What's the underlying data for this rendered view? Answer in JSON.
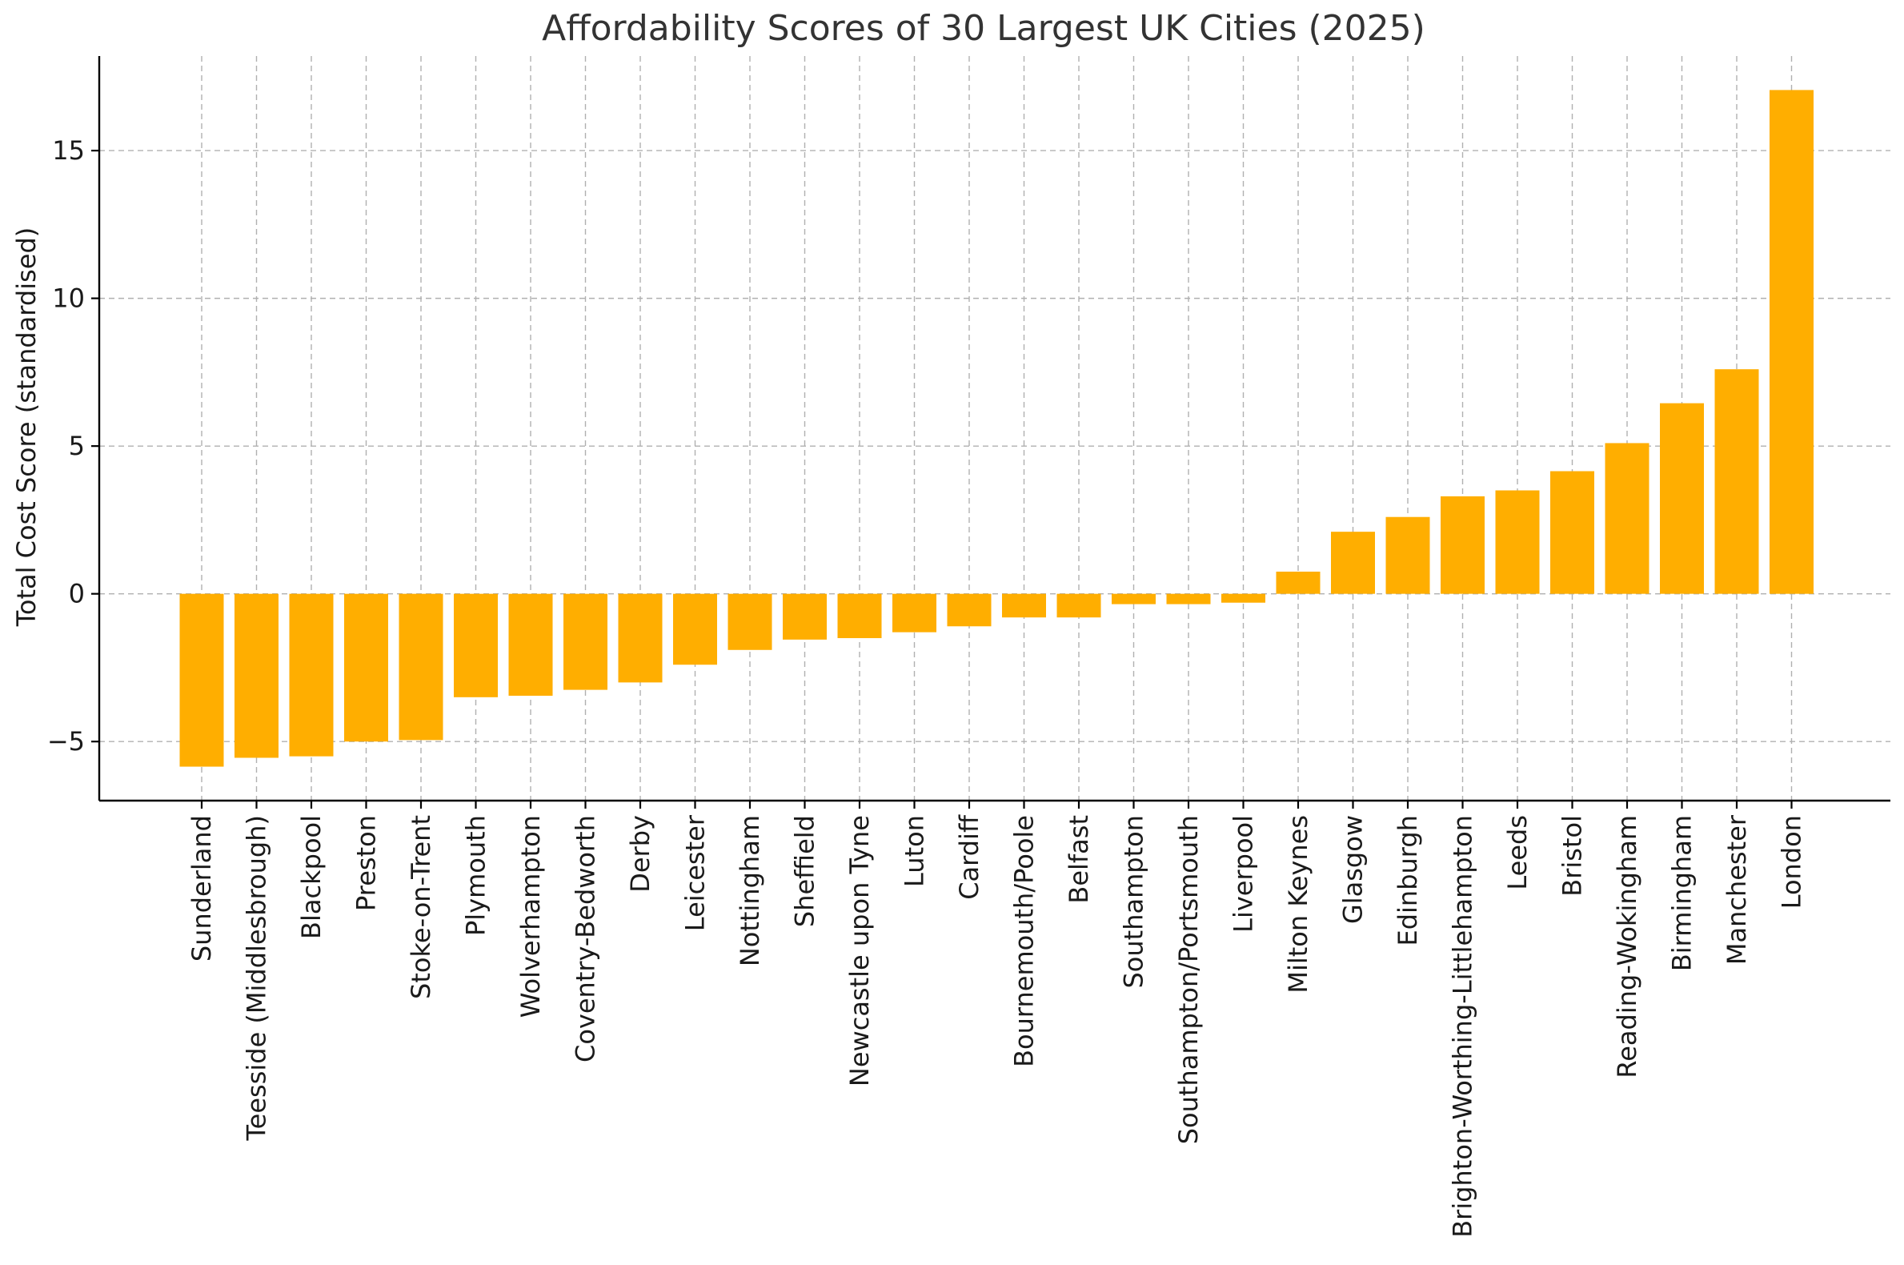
{
  "chart_data": {
    "type": "bar",
    "title": "Affordability Scores of 30 Largest UK Cities (2025)",
    "xlabel": "",
    "ylabel": "Total Cost Score (standardised)",
    "ylim": [
      -7,
      18.2
    ],
    "yticks": [
      -5,
      0,
      5,
      10,
      15
    ],
    "ytick_labels": [
      "−5",
      "0",
      "5",
      "10",
      "15"
    ],
    "grid": true,
    "bar_color": "#FFAE00",
    "categories": [
      "Sunderland",
      "Teesside (Middlesbrough)",
      "Blackpool",
      "Preston",
      "Stoke-on-Trent",
      "Plymouth",
      "Wolverhampton",
      "Coventry-Bedworth",
      "Derby",
      "Leicester",
      "Nottingham",
      "Sheffield",
      "Newcastle upon Tyne",
      "Luton",
      "Cardiff",
      "Bournemouth/Poole",
      "Belfast",
      "Southampton",
      "Southampton/Portsmouth",
      "Liverpool",
      "Milton Keynes",
      "Glasgow",
      "Edinburgh",
      "Brighton-Worthing-Littlehampton",
      "Leeds",
      "Bristol",
      "Reading-Wokingham",
      "Birmingham",
      "Manchester",
      "London"
    ],
    "values": [
      -5.85,
      -5.55,
      -5.5,
      -5.0,
      -4.95,
      -3.5,
      -3.45,
      -3.25,
      -3.0,
      -2.4,
      -1.9,
      -1.55,
      -1.5,
      -1.3,
      -1.1,
      -0.8,
      -0.8,
      -0.35,
      -0.35,
      -0.3,
      0.75,
      2.1,
      2.6,
      3.3,
      3.5,
      4.15,
      5.1,
      6.45,
      7.6,
      17.05
    ]
  }
}
